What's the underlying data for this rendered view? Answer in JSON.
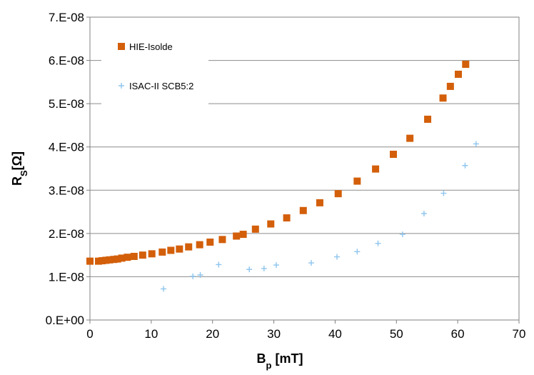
{
  "chart_data": {
    "type": "scatter",
    "title": "",
    "xlabel": "B",
    "xlabel_sub": "p",
    "xlabel_unit": " [mT]",
    "ylabel": "R",
    "ylabel_sub": "S",
    "ylabel_unit": "[Ω]",
    "xlim": [
      0,
      70
    ],
    "ylim": [
      0,
      7e-08
    ],
    "x_ticks": [
      0,
      10,
      20,
      30,
      40,
      50,
      60,
      70
    ],
    "x_tick_labels": [
      "0",
      "10",
      "20",
      "30",
      "40",
      "50",
      "60",
      "70"
    ],
    "y_ticks": [
      0,
      1e-08,
      2e-08,
      3e-08,
      4e-08,
      5e-08,
      6e-08,
      7e-08
    ],
    "y_tick_labels": [
      "0.E+00",
      "1.E-08",
      "2.E-08",
      "3.E-08",
      "4.E-08",
      "5.E-08",
      "6.E-08",
      "7.E-08"
    ],
    "grid": "horizontal",
    "legend_position": "top-left",
    "series": [
      {
        "name": "HIE-Isolde",
        "marker": "square",
        "color": "#d35f0a",
        "x": [
          0.0,
          1.4,
          2.0,
          2.6,
          3.2,
          3.9,
          4.5,
          5.2,
          6.1,
          7.2,
          8.6,
          10.1,
          11.8,
          13.2,
          14.6,
          16.1,
          17.9,
          19.6,
          21.6,
          23.9,
          25.0,
          27.0,
          29.5,
          32.1,
          34.8,
          37.5,
          40.5,
          43.6,
          46.6,
          49.5,
          52.2,
          55.1,
          57.6,
          58.8,
          60.1,
          61.3
        ],
        "y": [
          1.36e-08,
          1.36e-08,
          1.37e-08,
          1.38e-08,
          1.39e-08,
          1.4e-08,
          1.41e-08,
          1.43e-08,
          1.45e-08,
          1.47e-08,
          1.5e-08,
          1.53e-08,
          1.57e-08,
          1.61e-08,
          1.64e-08,
          1.69e-08,
          1.74e-08,
          1.8e-08,
          1.86e-08,
          1.94e-08,
          1.98e-08,
          2.1e-08,
          2.22e-08,
          2.36e-08,
          2.53e-08,
          2.71e-08,
          2.92e-08,
          3.21e-08,
          3.49e-08,
          3.83e-08,
          4.2e-08,
          4.64e-08,
          5.13e-08,
          5.4e-08,
          5.68e-08,
          5.91e-08
        ]
      },
      {
        "name": "ISAC-II SCB5:2",
        "marker": "plus",
        "color": "#8ec5ee",
        "x": [
          12.0,
          16.8,
          18.0,
          21.0,
          26.0,
          28.4,
          30.4,
          36.1,
          40.3,
          43.6,
          47.0,
          51.0,
          54.5,
          57.7,
          61.2,
          63.0
        ],
        "y": [
          7.2e-09,
          1.01e-08,
          1.04e-08,
          1.28e-08,
          1.17e-08,
          1.19e-08,
          1.27e-08,
          1.32e-08,
          1.46e-08,
          1.58e-08,
          1.77e-08,
          1.98e-08,
          2.46e-08,
          2.93e-08,
          3.57e-08,
          4.07e-08
        ]
      }
    ]
  }
}
